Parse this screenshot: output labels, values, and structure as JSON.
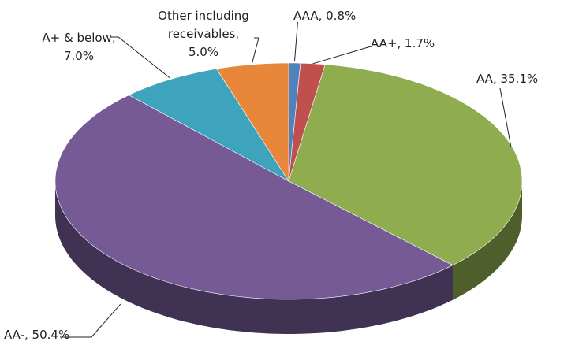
{
  "chart_data": {
    "type": "pie",
    "values": [
      0.8,
      1.7,
      35.1,
      50.4,
      7.0,
      5.0
    ],
    "value_labels": [
      "AAA, 0.8%",
      "AA+, 1.7%",
      "AA, 35.1%",
      "AA-, 50.4%",
      "A+ & below,\n7.0%",
      "Other including\nreceivables,\n5.0%"
    ],
    "colors": [
      "#4f81bd",
      "#c0504d",
      "#8fac4e",
      "#755a95",
      "#3ea3bd",
      "#e8873a"
    ]
  }
}
